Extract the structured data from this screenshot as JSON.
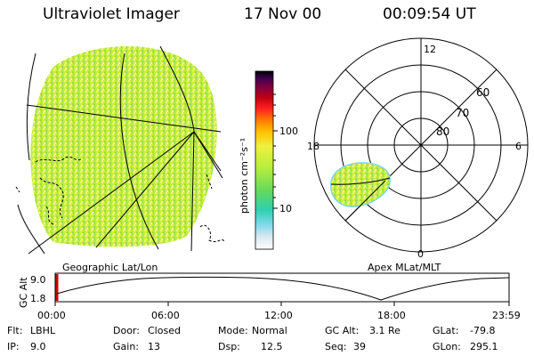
{
  "header": {
    "instrument": "Ultraviolet Imager",
    "date": "17 Nov 00",
    "time": "00:09:54 UT"
  },
  "colorbar": {
    "unit_label": "photon cm⁻²s⁻¹",
    "ticks": [
      {
        "value": 100,
        "label": "100"
      },
      {
        "value": 10,
        "label": "10"
      }
    ],
    "scale": "log"
  },
  "geo_panel": {
    "label": "Geographic Lat/Lon"
  },
  "polar_panel": {
    "label": "Apex MLat/MLT",
    "mlt_labels": [
      {
        "hour": 12,
        "label": "12"
      },
      {
        "hour": 18,
        "label": "18"
      },
      {
        "hour": 6,
        "label": "6"
      },
      {
        "hour": 0,
        "label": "0"
      }
    ],
    "lat_labels": [
      {
        "lat": 60,
        "label": "60"
      },
      {
        "lat": 70,
        "label": "70"
      },
      {
        "lat": 80,
        "label": "80"
      }
    ]
  },
  "timeline": {
    "axis_label": "GC Alt",
    "y_ticks": [
      {
        "value": 9.0,
        "label": "9.0"
      },
      {
        "value": 1.8,
        "label": "1.8"
      }
    ],
    "x_ticks": [
      "00:00",
      "06:00",
      "12:00",
      "18:00",
      "23:59"
    ],
    "marker_color": "#cc0000"
  },
  "info": {
    "flt_label": "Flt:",
    "flt_value": "LBHL",
    "ip_label": "IP:",
    "ip_value": "9.0",
    "door_label": "Door:",
    "door_value": "Closed",
    "gain_label": "Gain:",
    "gain_value": "13",
    "mode_label": "Mode:",
    "mode_value": "Normal",
    "dsp_label": "Dsp:",
    "dsp_value": "12.5",
    "gcalt_label": "GC Alt:",
    "gcalt_value": "3.1 Re",
    "seq_label": "Seq:",
    "seq_value": "39",
    "glat_label": "GLat:",
    "glat_value": "-79.8",
    "glon_label": "GLon:",
    "glon_value": "295.1"
  }
}
